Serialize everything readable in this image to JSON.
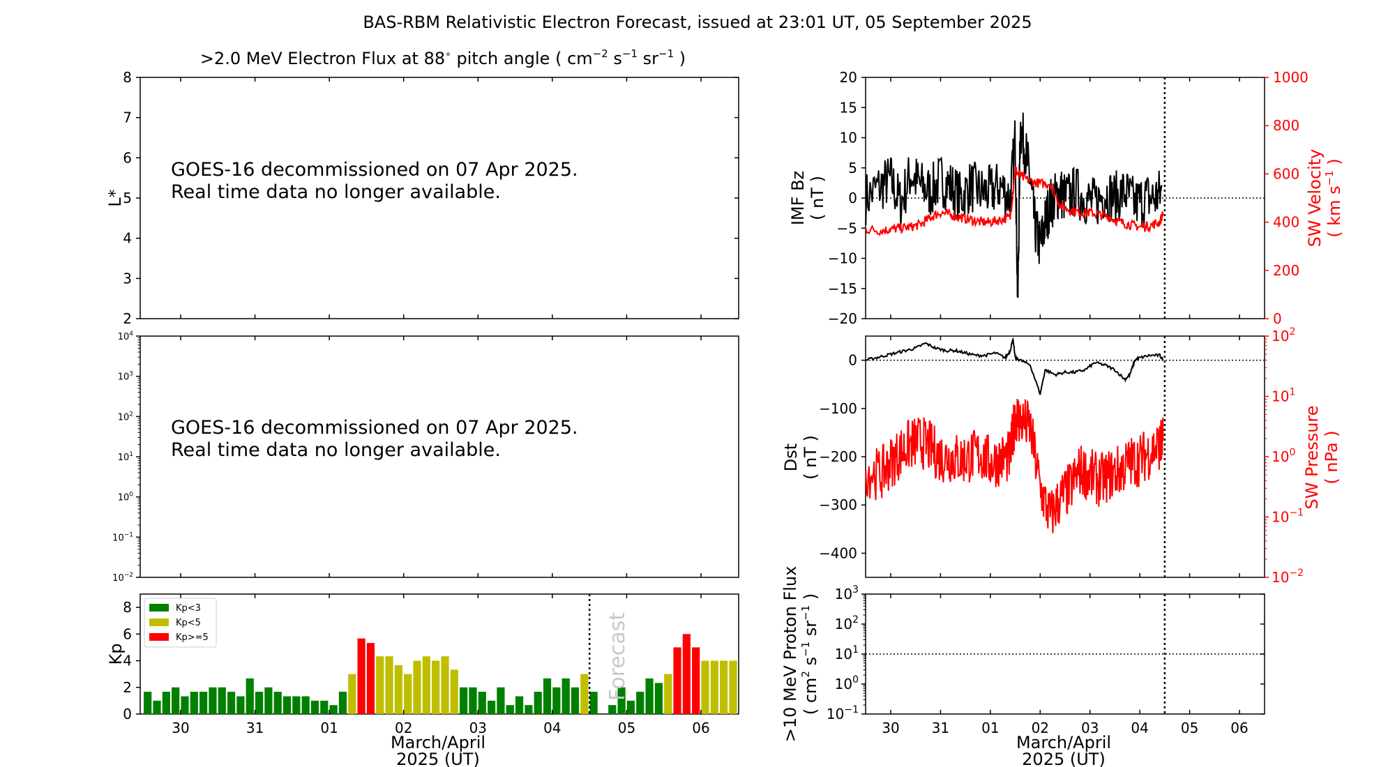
{
  "title": "BAS-RBM Relativistic Electron Forecast, issued at 23:01 UT, 05 September 2025",
  "flux_panel": {
    "title_text": ">2.0 MeV Electron Flux at 88",
    "title_deg": "∘",
    "title_units_prefix": "pitch angle ( cm",
    "title_sup1": "−2",
    "title_s": " s",
    "title_sup2": "−1",
    "title_sr": " sr",
    "title_sup3": "−1",
    "title_close": " )",
    "ylabel": "L*",
    "yticks": [
      "2",
      "3",
      "4",
      "5",
      "6",
      "7",
      "8"
    ],
    "message_line1": "GOES-16 decommissioned on 07 Apr 2025.",
    "message_line2": "Real time data no longer available."
  },
  "log_panel": {
    "ytick_base": "10",
    "ytick_exps": [
      "−2",
      "−1",
      "0",
      "1",
      "2",
      "3",
      "4"
    ],
    "message_line1": "GOES-16 decommissioned on 07 Apr 2025.",
    "message_line2": "Real time data no longer available."
  },
  "kp_panel": {
    "ylabel": "Kp",
    "yticks": [
      "0",
      "2",
      "4",
      "6",
      "8"
    ],
    "xticks": [
      "30",
      "31",
      "01",
      "02",
      "03",
      "04",
      "05",
      "06"
    ],
    "xlabel_line1": "March/April",
    "xlabel_line2": "2025 (UT)",
    "forecast_label": "Forecast",
    "legend": [
      {
        "label": "Kp<3",
        "color": "#008000"
      },
      {
        "label": "Kp<5",
        "color": "#bfbf00"
      },
      {
        "label": "Kp>=5",
        "color": "#ff0000"
      }
    ]
  },
  "imf_panel": {
    "ylabel_line1": "IMF Bz",
    "ylabel_line2": "( nT )",
    "yticks": [
      "−20",
      "−15",
      "−10",
      "−5",
      "0",
      "5",
      "10",
      "15",
      "20"
    ],
    "y2label_line1": "SW Velocity",
    "y2label_line2_a": "( km s",
    "y2label_sup": "−1",
    "y2label_line2_b": " )",
    "y2ticks": [
      "0",
      "200",
      "400",
      "600",
      "800",
      "1000"
    ]
  },
  "dst_panel": {
    "ylabel_line1": "Dst",
    "ylabel_line2": "( nT )",
    "yticks": [
      "−400",
      "−300",
      "−200",
      "−100",
      "0"
    ],
    "y2label_line1": "SW Pressure",
    "y2label_line2": "( nPa )",
    "y2tick_base": "10",
    "y2tick_exps": [
      "−2",
      "−1",
      "0",
      "1",
      "2"
    ]
  },
  "proton_panel": {
    "ylabel_line1": ">10 MeV Proton Flux",
    "ylabel_line2_a": "( cm",
    "ylabel_sup1": "2",
    "ylabel_s": " s",
    "ylabel_sup2": "−1",
    "ylabel_sr": " sr",
    "ylabel_sup3": "−1",
    "ylabel_close": " )",
    "ytick_base": "10",
    "ytick_exps": [
      "−1",
      "0",
      "1",
      "2",
      "3"
    ],
    "xticks": [
      "30",
      "31",
      "01",
      "02",
      "03",
      "04",
      "05",
      "06"
    ],
    "xlabel_line1": "March/April",
    "xlabel_line2": "2025 (UT)"
  },
  "colors": {
    "kp_low": "#008000",
    "kp_mid": "#bfbf00",
    "kp_high": "#ff0000",
    "sw_series": "#ff0000",
    "bz_series": "#000000"
  },
  "chart_data": [
    {
      "type": "bar",
      "name": "Kp",
      "xlim": [
        29.5,
        36.45
      ],
      "ylim": [
        0,
        9
      ],
      "x_start": 29.5,
      "bar_interval_days": 0.125,
      "forecast_start": 35.5,
      "values": [
        1.67,
        1.0,
        1.67,
        2.0,
        1.33,
        1.67,
        1.67,
        2.0,
        2.0,
        1.67,
        1.33,
        2.67,
        1.67,
        2.0,
        1.67,
        1.33,
        1.33,
        1.33,
        1.0,
        1.0,
        0.67,
        1.67,
        3.0,
        5.67,
        5.33,
        4.33,
        4.33,
        3.67,
        3.0,
        4.0,
        4.33,
        4.0,
        4.33,
        3.33,
        2.0,
        2.0,
        1.67,
        1.0,
        2.0,
        0.67,
        1.33,
        0.67,
        1.67,
        2.67,
        2.0,
        2.67,
        2.0,
        3.0,
        1.67,
        0,
        0.67,
        2.0,
        1.0,
        1.67,
        2.67,
        2.33,
        3.0,
        5.0,
        6.0,
        5.0,
        4.0,
        4.0,
        4.0,
        4.0
      ],
      "legend": [
        "Kp<3",
        "Kp<5",
        "Kp>=5"
      ]
    },
    {
      "type": "line",
      "name": "IMF Bz / SW Velocity",
      "xlim": [
        29.5,
        36.45
      ],
      "ylim": [
        -20,
        20
      ],
      "y2lim": [
        0,
        1000
      ],
      "now": 35.5,
      "bz_x": [
        29.5,
        29.8,
        30.0,
        30.2,
        30.4,
        30.6,
        30.8,
        31.0,
        31.2,
        31.4,
        31.6,
        31.8,
        32.0,
        32.2,
        32.4,
        32.5,
        32.55,
        32.6,
        32.7,
        32.8,
        32.9,
        33.0,
        33.1,
        33.2,
        33.3,
        33.4,
        33.5,
        33.7,
        33.9,
        34.1,
        34.3,
        34.5,
        34.7,
        34.9,
        35.1,
        35.3,
        35.45
      ],
      "bz_y": [
        0,
        2,
        3,
        -1,
        4,
        2,
        1,
        3,
        2,
        0,
        2,
        1,
        1,
        2,
        0,
        10,
        -18,
        12,
        8,
        3,
        -5,
        -8,
        -4,
        -1,
        0,
        1,
        0,
        1,
        0,
        -1,
        1,
        0,
        1,
        -1,
        0,
        0,
        1
      ],
      "v_x": [
        29.5,
        29.8,
        30.0,
        30.2,
        30.4,
        30.6,
        30.8,
        31.0,
        31.2,
        31.4,
        31.6,
        31.8,
        32.0,
        32.2,
        32.4,
        32.5,
        32.6,
        32.8,
        33.0,
        33.2,
        33.4,
        33.6,
        33.8,
        34.0,
        34.2,
        34.4,
        34.6,
        34.8,
        35.0,
        35.2,
        35.4,
        35.47
      ],
      "v_y": [
        370,
        365,
        370,
        375,
        380,
        390,
        420,
        440,
        430,
        420,
        410,
        400,
        400,
        410,
        420,
        620,
        590,
        570,
        560,
        560,
        470,
        450,
        440,
        440,
        430,
        420,
        400,
        390,
        380,
        385,
        400,
        440
      ]
    },
    {
      "type": "line",
      "name": "Dst / SW Pressure",
      "xlim": [
        29.5,
        36.45
      ],
      "ylim": [
        -450,
        50
      ],
      "y2scale": "log",
      "y2lim": [
        0.01,
        100
      ],
      "now": 35.5,
      "dst_x": [
        29.5,
        29.7,
        29.9,
        30.1,
        30.3,
        30.5,
        30.7,
        30.9,
        31.1,
        31.3,
        31.5,
        31.7,
        31.9,
        32.1,
        32.3,
        32.4,
        32.45,
        32.5,
        32.6,
        32.8,
        33.0,
        33.1,
        33.3,
        33.5,
        33.7,
        33.9,
        34.1,
        34.3,
        34.5,
        34.7,
        34.8,
        34.9,
        35.0,
        35.2,
        35.4,
        35.47
      ],
      "dst_y": [
        0,
        5,
        10,
        15,
        20,
        25,
        35,
        25,
        20,
        20,
        15,
        10,
        10,
        15,
        5,
        20,
        45,
        5,
        0,
        -10,
        -70,
        -20,
        -30,
        -25,
        -25,
        -20,
        -5,
        -10,
        -20,
        -40,
        -30,
        0,
        5,
        10,
        10,
        0
      ],
      "p_x": [
        29.5,
        29.8,
        30.0,
        30.2,
        30.4,
        30.6,
        30.8,
        31.0,
        31.2,
        31.4,
        31.6,
        31.8,
        32.0,
        32.2,
        32.4,
        32.5,
        32.6,
        32.8,
        33.0,
        33.2,
        33.4,
        33.6,
        33.8,
        34.0,
        34.2,
        34.4,
        34.6,
        34.8,
        35.0,
        35.2,
        35.4,
        35.47
      ],
      "p_y": [
        0.6,
        0.5,
        0.8,
        1.2,
        1.6,
        1.8,
        1.4,
        1.0,
        1.0,
        0.9,
        1.0,
        1.1,
        0.8,
        0.9,
        1.0,
        5,
        4,
        3,
        0.3,
        0.1,
        0.2,
        0.3,
        0.6,
        0.5,
        0.4,
        0.5,
        0.6,
        0.8,
        0.9,
        1.2,
        1.6,
        1.8
      ]
    },
    {
      "type": "line",
      "name": ">10 MeV Proton Flux",
      "xlim": [
        29.5,
        36.45
      ],
      "yscale": "log",
      "ylim": [
        0.1,
        1000
      ],
      "threshold": 10,
      "now": 35.5
    }
  ]
}
